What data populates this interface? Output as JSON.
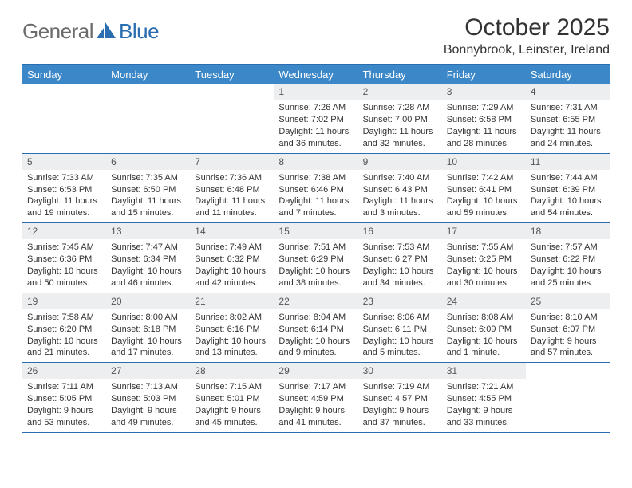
{
  "brand": {
    "name_part1": "General",
    "name_part2": "Blue",
    "colors": {
      "gray": "#6b6b6b",
      "blue": "#2a6db0",
      "header_bg": "#3b87c8",
      "daynum_bg": "#eceeef"
    }
  },
  "title": "October 2025",
  "location": "Bonnybrook, Leinster, Ireland",
  "weekdays": [
    "Sunday",
    "Monday",
    "Tuesday",
    "Wednesday",
    "Thursday",
    "Friday",
    "Saturday"
  ],
  "labels": {
    "sunrise": "Sunrise:",
    "sunset": "Sunset:",
    "daylight": "Daylight:"
  },
  "weeks": [
    [
      null,
      null,
      null,
      {
        "n": "1",
        "sunrise": "7:26 AM",
        "sunset": "7:02 PM",
        "daylight": "11 hours and 36 minutes."
      },
      {
        "n": "2",
        "sunrise": "7:28 AM",
        "sunset": "7:00 PM",
        "daylight": "11 hours and 32 minutes."
      },
      {
        "n": "3",
        "sunrise": "7:29 AM",
        "sunset": "6:58 PM",
        "daylight": "11 hours and 28 minutes."
      },
      {
        "n": "4",
        "sunrise": "7:31 AM",
        "sunset": "6:55 PM",
        "daylight": "11 hours and 24 minutes."
      }
    ],
    [
      {
        "n": "5",
        "sunrise": "7:33 AM",
        "sunset": "6:53 PM",
        "daylight": "11 hours and 19 minutes."
      },
      {
        "n": "6",
        "sunrise": "7:35 AM",
        "sunset": "6:50 PM",
        "daylight": "11 hours and 15 minutes."
      },
      {
        "n": "7",
        "sunrise": "7:36 AM",
        "sunset": "6:48 PM",
        "daylight": "11 hours and 11 minutes."
      },
      {
        "n": "8",
        "sunrise": "7:38 AM",
        "sunset": "6:46 PM",
        "daylight": "11 hours and 7 minutes."
      },
      {
        "n": "9",
        "sunrise": "7:40 AM",
        "sunset": "6:43 PM",
        "daylight": "11 hours and 3 minutes."
      },
      {
        "n": "10",
        "sunrise": "7:42 AM",
        "sunset": "6:41 PM",
        "daylight": "10 hours and 59 minutes."
      },
      {
        "n": "11",
        "sunrise": "7:44 AM",
        "sunset": "6:39 PM",
        "daylight": "10 hours and 54 minutes."
      }
    ],
    [
      {
        "n": "12",
        "sunrise": "7:45 AM",
        "sunset": "6:36 PM",
        "daylight": "10 hours and 50 minutes."
      },
      {
        "n": "13",
        "sunrise": "7:47 AM",
        "sunset": "6:34 PM",
        "daylight": "10 hours and 46 minutes."
      },
      {
        "n": "14",
        "sunrise": "7:49 AM",
        "sunset": "6:32 PM",
        "daylight": "10 hours and 42 minutes."
      },
      {
        "n": "15",
        "sunrise": "7:51 AM",
        "sunset": "6:29 PM",
        "daylight": "10 hours and 38 minutes."
      },
      {
        "n": "16",
        "sunrise": "7:53 AM",
        "sunset": "6:27 PM",
        "daylight": "10 hours and 34 minutes."
      },
      {
        "n": "17",
        "sunrise": "7:55 AM",
        "sunset": "6:25 PM",
        "daylight": "10 hours and 30 minutes."
      },
      {
        "n": "18",
        "sunrise": "7:57 AM",
        "sunset": "6:22 PM",
        "daylight": "10 hours and 25 minutes."
      }
    ],
    [
      {
        "n": "19",
        "sunrise": "7:58 AM",
        "sunset": "6:20 PM",
        "daylight": "10 hours and 21 minutes."
      },
      {
        "n": "20",
        "sunrise": "8:00 AM",
        "sunset": "6:18 PM",
        "daylight": "10 hours and 17 minutes."
      },
      {
        "n": "21",
        "sunrise": "8:02 AM",
        "sunset": "6:16 PM",
        "daylight": "10 hours and 13 minutes."
      },
      {
        "n": "22",
        "sunrise": "8:04 AM",
        "sunset": "6:14 PM",
        "daylight": "10 hours and 9 minutes."
      },
      {
        "n": "23",
        "sunrise": "8:06 AM",
        "sunset": "6:11 PM",
        "daylight": "10 hours and 5 minutes."
      },
      {
        "n": "24",
        "sunrise": "8:08 AM",
        "sunset": "6:09 PM",
        "daylight": "10 hours and 1 minute."
      },
      {
        "n": "25",
        "sunrise": "8:10 AM",
        "sunset": "6:07 PM",
        "daylight": "9 hours and 57 minutes."
      }
    ],
    [
      {
        "n": "26",
        "sunrise": "7:11 AM",
        "sunset": "5:05 PM",
        "daylight": "9 hours and 53 minutes."
      },
      {
        "n": "27",
        "sunrise": "7:13 AM",
        "sunset": "5:03 PM",
        "daylight": "9 hours and 49 minutes."
      },
      {
        "n": "28",
        "sunrise": "7:15 AM",
        "sunset": "5:01 PM",
        "daylight": "9 hours and 45 minutes."
      },
      {
        "n": "29",
        "sunrise": "7:17 AM",
        "sunset": "4:59 PM",
        "daylight": "9 hours and 41 minutes."
      },
      {
        "n": "30",
        "sunrise": "7:19 AM",
        "sunset": "4:57 PM",
        "daylight": "9 hours and 37 minutes."
      },
      {
        "n": "31",
        "sunrise": "7:21 AM",
        "sunset": "4:55 PM",
        "daylight": "9 hours and 33 minutes."
      },
      null
    ]
  ]
}
